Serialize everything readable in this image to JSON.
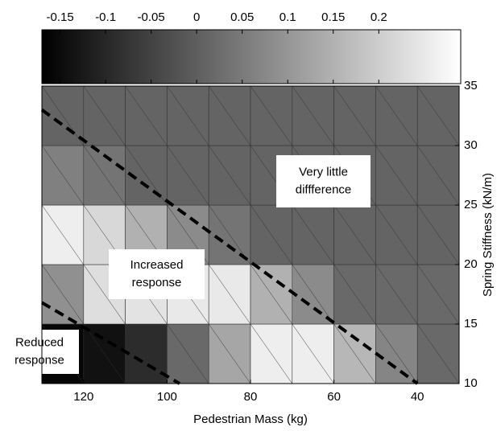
{
  "chart_data": {
    "type": "heatmap",
    "x": [
      125,
      115,
      105,
      95,
      85,
      75,
      65,
      55,
      45,
      35
    ],
    "y": [
      12.5,
      17.5,
      22.5,
      27.5,
      32.5
    ],
    "z": [
      [
        -0.16,
        -0.14,
        -0.09,
        0.02,
        0.13,
        0.26,
        0.26,
        0.16,
        0.07,
        0.02
      ],
      [
        0.09,
        0.23,
        0.24,
        0.25,
        0.25,
        0.15,
        0.08,
        0.02,
        0.02,
        0.02
      ],
      [
        0.26,
        0.22,
        0.15,
        0.08,
        0.04,
        0.01,
        0.01,
        0.01,
        0.01,
        0.01
      ],
      [
        0.06,
        0.04,
        0.01,
        0.01,
        0.01,
        0.01,
        0.01,
        0.01,
        0.01,
        0.01
      ],
      [
        0.01,
        0.01,
        0.01,
        0.01,
        0.01,
        0.01,
        0.01,
        0.01,
        0.01,
        0.01
      ]
    ],
    "xlim": [
      130,
      30
    ],
    "ylim": [
      10,
      35
    ],
    "xticks": [
      120,
      100,
      80,
      60,
      40
    ],
    "yticks": [
      10,
      15,
      20,
      25,
      30,
      35
    ],
    "xlabel": "Pedestrian Mass (kg)",
    "ylabel": "Spring Stiffness (kN/m)",
    "colormap": "gray",
    "clim": [
      -0.17,
      0.29
    ],
    "cticks": [
      -0.15,
      -0.1,
      -0.05,
      0,
      0.05,
      0.1,
      0.15,
      0.2
    ],
    "lines": [
      {
        "x": [
          130,
          40
        ],
        "y": [
          33,
          10
        ]
      },
      {
        "x": [
          130,
          97
        ],
        "y": [
          16.8,
          10
        ]
      }
    ],
    "annotations": [
      [
        "Very little",
        "diffference"
      ],
      [
        "Increased",
        "response"
      ],
      [
        "Reduced",
        "response"
      ]
    ]
  }
}
